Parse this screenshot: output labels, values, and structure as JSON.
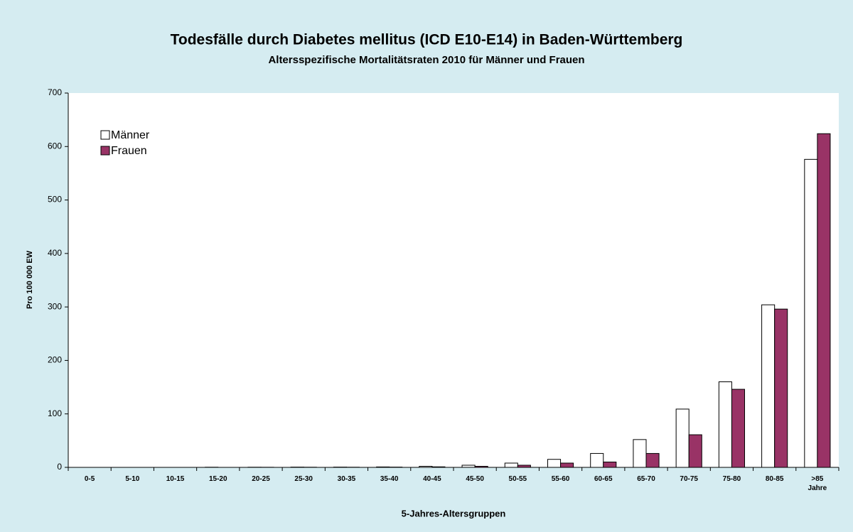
{
  "chart_data": {
    "type": "bar",
    "title": "Todesfälle durch Diabetes mellitus (ICD E10-E14) in Baden-Württemberg",
    "subtitle": "Altersspezifische Mortalitätsraten 2010  für Männer und Frauen",
    "y_label": "Pro 100 000 EW",
    "x_label": "5-Jahres-Altersgruppen",
    "categories": [
      "0-5",
      "5-10",
      "10-15",
      "15-20",
      "20-25",
      "25-30",
      "30-35",
      "35-40",
      "40-45",
      "45-50",
      "50-55",
      "55-60",
      "60-65",
      "65-70",
      "70-75",
      "75-80",
      "80-85",
      ">85 Jahre"
    ],
    "series": [
      {
        "name": "Männer",
        "color": "#ffffff",
        "values": [
          0,
          0,
          0,
          0.3,
          0.3,
          0.5,
          0.5,
          0.8,
          2,
          4,
          8,
          15,
          26,
          52,
          109,
          160,
          304,
          576
        ]
      },
      {
        "name": "Frauen",
        "color": "#993366",
        "values": [
          0,
          0,
          0,
          0,
          0.2,
          0.3,
          0.3,
          0.5,
          1,
          2,
          4,
          8,
          10,
          26,
          61,
          146,
          296,
          624
        ]
      }
    ],
    "ylim": [
      0,
      700
    ],
    "yticks": [
      0,
      100,
      200,
      300,
      400,
      500,
      600,
      700
    ],
    "grid": false,
    "legend": "top-left"
  }
}
